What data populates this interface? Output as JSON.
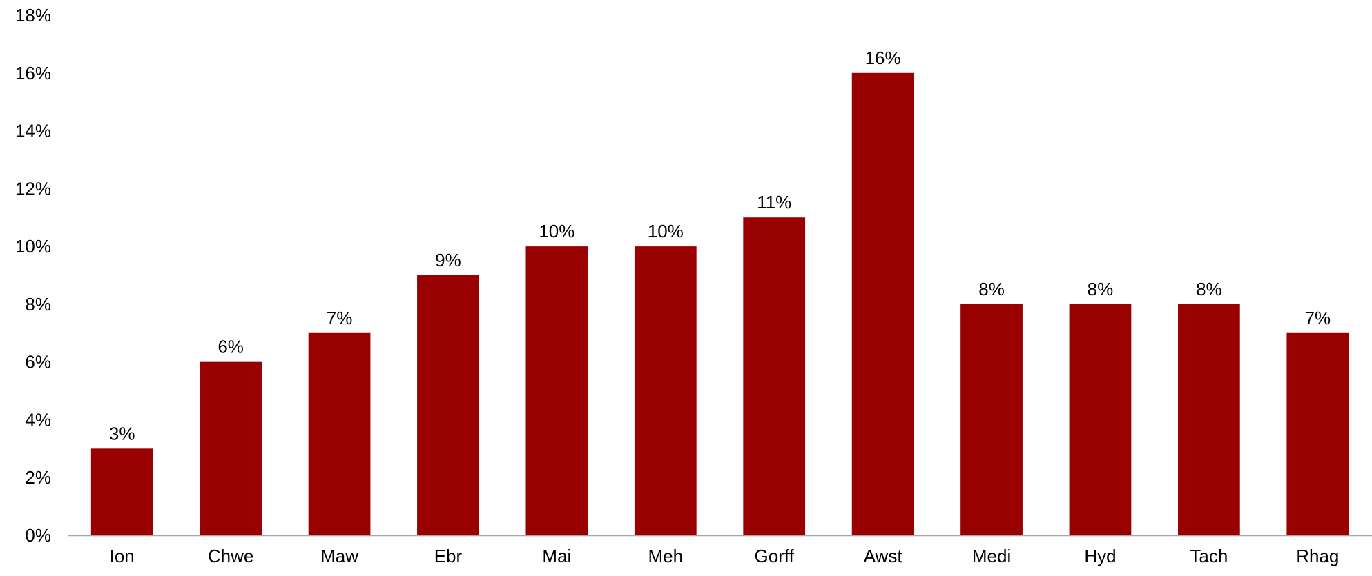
{
  "chart_data": {
    "type": "bar",
    "categories": [
      "Ion",
      "Chwe",
      "Maw",
      "Ebr",
      "Mai",
      "Meh",
      "Gorff",
      "Awst",
      "Medi",
      "Hyd",
      "Tach",
      "Rhag"
    ],
    "values": [
      3,
      6,
      7,
      9,
      10,
      10,
      11,
      16,
      8,
      8,
      8,
      7
    ],
    "data_labels": [
      "3%",
      "6%",
      "7%",
      "9%",
      "10%",
      "10%",
      "11%",
      "16%",
      "8%",
      "8%",
      "8%",
      "7%"
    ],
    "y_ticks": [
      0,
      2,
      4,
      6,
      8,
      10,
      12,
      14,
      16,
      18
    ],
    "y_tick_labels": [
      "0%",
      "2%",
      "4%",
      "6%",
      "8%",
      "10%",
      "12%",
      "14%",
      "16%",
      "18%"
    ],
    "ylim": [
      0,
      18
    ],
    "title": "",
    "xlabel": "",
    "ylabel": "",
    "grid": false,
    "legend": "none",
    "bar_color": "#990000",
    "axis_color": "#A6A6A6"
  }
}
